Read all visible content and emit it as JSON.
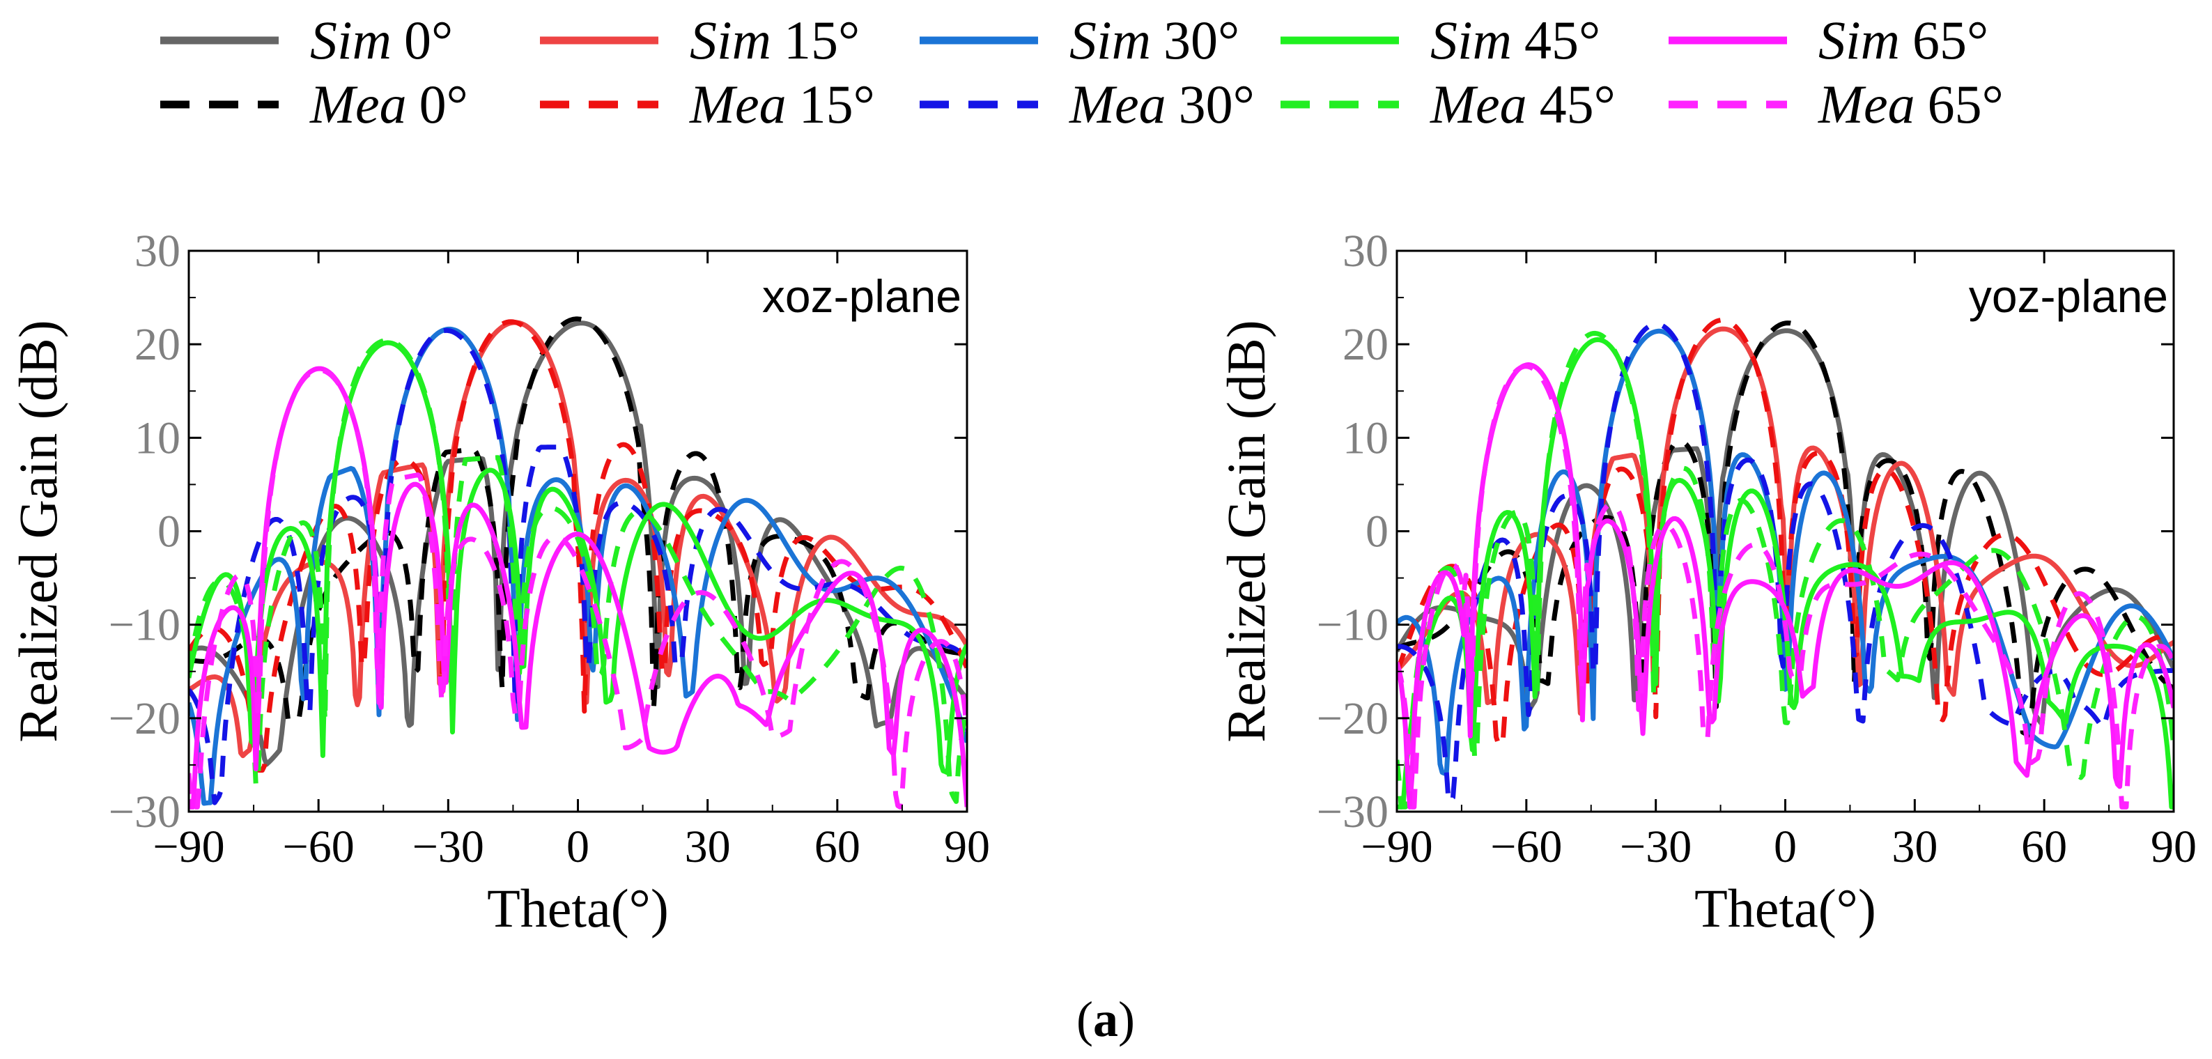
{
  "legend": [
    {
      "kind": "Sim",
      "angle": "0°",
      "color": "#666666",
      "dash": false
    },
    {
      "kind": "Sim",
      "angle": "15°",
      "color": "#ee4444",
      "dash": false
    },
    {
      "kind": "Sim",
      "angle": "30°",
      "color": "#1b74d6",
      "dash": false
    },
    {
      "kind": "Sim",
      "angle": "45°",
      "color": "#1ff01f",
      "dash": false
    },
    {
      "kind": "Sim",
      "angle": "65°",
      "color": "#ff1aff",
      "dash": false
    },
    {
      "kind": "Mea",
      "angle": "0°",
      "color": "#000000",
      "dash": true
    },
    {
      "kind": "Mea",
      "angle": "15°",
      "color": "#ee1111",
      "dash": true
    },
    {
      "kind": "Mea",
      "angle": "30°",
      "color": "#1414e6",
      "dash": true
    },
    {
      "kind": "Mea",
      "angle": "45°",
      "color": "#22ee22",
      "dash": true
    },
    {
      "kind": "Mea",
      "angle": "65°",
      "color": "#ff22ff",
      "dash": true
    }
  ],
  "caption": {
    "open": "(",
    "letter": "a",
    "close": ")"
  },
  "chart_data": [
    {
      "type": "line",
      "plane_label": "xoz-plane",
      "xlabel": "Theta(°)",
      "ylabel": "Realized Gain (dB)",
      "xlim": [
        -90,
        90
      ],
      "ylim": [
        -30,
        30
      ],
      "xticks": [
        -90,
        -60,
        -30,
        0,
        30,
        60,
        90
      ],
      "xtick_labels": [
        "−90",
        "−60",
        "−30",
        "0",
        "30",
        "60",
        "90"
      ],
      "yticks": [
        -30,
        -20,
        -10,
        0,
        10,
        20,
        30
      ],
      "ytick_labels": [
        "−30",
        "−20",
        "−10",
        "0",
        "10",
        "20",
        "30"
      ],
      "series": [
        {
          "name": "Sim 0°",
          "steer": 0,
          "peak": 22,
          "side": 8,
          "offset": 0
        },
        {
          "name": "Mea 0°",
          "steer": 0,
          "peak": 21.5,
          "side": 9,
          "offset": 0.7
        },
        {
          "name": "Sim 15°",
          "steer": -15,
          "peak": 22,
          "side": 8,
          "offset": 0
        },
        {
          "name": "Mea 15°",
          "steer": -15,
          "peak": 21.5,
          "side": 9.5,
          "offset": 0.7
        },
        {
          "name": "Sim 30°",
          "steer": -30,
          "peak": 21.5,
          "side": 9.5,
          "offset": 0
        },
        {
          "name": "Mea 30°",
          "steer": -30,
          "peak": 21,
          "side": 9,
          "offset": 0.7
        },
        {
          "name": "Sim 45°",
          "steer": -44,
          "peak": 20.5,
          "side": 8.5,
          "offset": 0
        },
        {
          "name": "Mea 45°",
          "steer": -44,
          "peak": 20.5,
          "side": 8,
          "offset": 0.7
        },
        {
          "name": "Sim 65°",
          "steer": -60,
          "peak": 18.5,
          "side": 7,
          "offset": 0
        },
        {
          "name": "Mea 65°",
          "steer": -60,
          "peak": 18,
          "side": 7,
          "offset": 0.7
        }
      ]
    },
    {
      "type": "line",
      "plane_label": "yoz-plane",
      "xlabel": "Theta(°)",
      "ylabel": "Realized Gain (dB)",
      "xlim": [
        -90,
        90
      ],
      "ylim": [
        -30,
        30
      ],
      "xticks": [
        -90,
        -60,
        -30,
        0,
        30,
        60,
        90
      ],
      "xtick_labels": [
        "−90",
        "−60",
        "−30",
        "0",
        "30",
        "60",
        "90"
      ],
      "yticks": [
        -30,
        -20,
        -10,
        0,
        10,
        20,
        30
      ],
      "ytick_labels": [
        "−30",
        "−20",
        "−10",
        "0",
        "10",
        "20",
        "30"
      ],
      "series": [
        {
          "name": "Sim 0°",
          "steer": 0,
          "peak": 22,
          "side": 9,
          "offset": 0
        },
        {
          "name": "Mea 0°",
          "steer": 0,
          "peak": 21.5,
          "side": 10,
          "offset": 0.7
        },
        {
          "name": "Sim 15°",
          "steer": -15,
          "peak": 22,
          "side": 9,
          "offset": 0
        },
        {
          "name": "Mea 15°",
          "steer": -15,
          "peak": 21.5,
          "side": 9.5,
          "offset": 0.7
        },
        {
          "name": "Sim 30°",
          "steer": -30,
          "peak": 21.5,
          "side": 10,
          "offset": 0
        },
        {
          "name": "Mea 30°",
          "steer": -30,
          "peak": 21,
          "side": 9,
          "offset": 0.7
        },
        {
          "name": "Sim 45°",
          "steer": -44,
          "peak": 20.5,
          "side": 9,
          "offset": 0
        },
        {
          "name": "Mea 45°",
          "steer": -44,
          "peak": 20.5,
          "side": 9,
          "offset": 0.7
        },
        {
          "name": "Sim 65°",
          "steer": -60,
          "peak": 18.5,
          "side": 7,
          "offset": 0
        },
        {
          "name": "Mea 65°",
          "steer": -60,
          "peak": 18,
          "side": 7,
          "offset": 0.7
        }
      ]
    }
  ]
}
